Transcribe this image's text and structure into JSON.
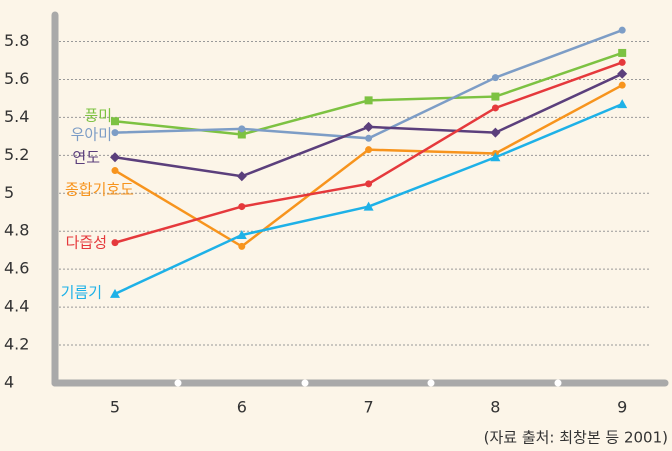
{
  "chart_data": {
    "type": "line",
    "categories": [
      "5",
      "6",
      "7",
      "8",
      "9"
    ],
    "series": [
      {
        "name": "풍미",
        "color": "#7dc242",
        "marker": "square",
        "values": [
          5.38,
          5.31,
          5.49,
          5.51,
          5.74
        ]
      },
      {
        "name": "우아미",
        "color": "#7d9dc6",
        "marker": "circle",
        "values": [
          5.32,
          5.34,
          5.29,
          5.61,
          5.86
        ]
      },
      {
        "name": "연도",
        "color": "#5b3f7c",
        "marker": "diamond",
        "values": [
          5.19,
          5.09,
          5.35,
          5.32,
          5.63
        ]
      },
      {
        "name": "종합기호도",
        "color": "#f7941d",
        "marker": "circle",
        "values": [
          5.12,
          4.72,
          5.23,
          5.21,
          5.57
        ]
      },
      {
        "name": "다즙성",
        "color": "#e5393c",
        "marker": "circle",
        "values": [
          4.74,
          4.93,
          5.05,
          5.45,
          5.69
        ]
      },
      {
        "name": "기름기",
        "color": "#1eb1e7",
        "marker": "triangle",
        "values": [
          4.47,
          4.78,
          4.93,
          5.19,
          5.47
        ]
      }
    ],
    "ylim": [
      4,
      5.94
    ],
    "yticks": [
      4,
      4.2,
      4.4,
      4.6,
      4.8,
      5,
      5.2,
      5.4,
      5.6,
      5.8
    ],
    "grid": true,
    "source": "(자료 출처: 최창본 등 2001)"
  }
}
